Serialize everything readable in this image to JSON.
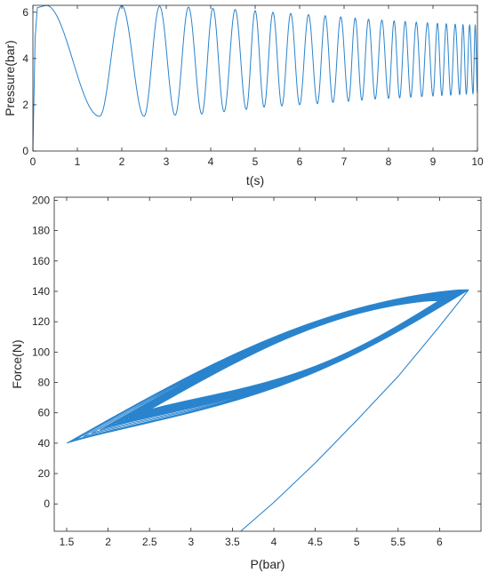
{
  "chart_data": [
    {
      "type": "line",
      "xlabel": "t(s)",
      "ylabel": "Pressure(bar)",
      "xlim": [
        0,
        10
      ],
      "ylim": [
        0,
        6.3
      ],
      "xticks": [
        "0",
        "1",
        "2",
        "3",
        "4",
        "5",
        "6",
        "7",
        "8",
        "9",
        "10"
      ],
      "yticks": [
        "0",
        "2",
        "4",
        "6"
      ],
      "grid": false,
      "series": [
        {
          "color": "#2a84cd",
          "description": "oscillating pressure signal",
          "initial_rise": {
            "t": [
              0,
              0.05,
              0.1,
              0.3
            ],
            "p": [
              0,
              4.9,
              6.2,
              6.3
            ]
          },
          "peaks": [
            6.3,
            6.28,
            6.26,
            6.22,
            6.17,
            6.12,
            6.07,
            6.0,
            5.95,
            5.9,
            5.85,
            5.8,
            5.75,
            5.7,
            5.66,
            5.63,
            5.6,
            5.57,
            5.54,
            5.52,
            5.5,
            5.48,
            5.46,
            5.45,
            5.44
          ],
          "troughs": [
            1.5,
            1.5,
            1.55,
            1.6,
            1.7,
            1.8,
            1.9,
            1.95,
            2.0,
            2.05,
            2.1,
            2.15,
            2.2,
            2.25,
            2.28,
            2.3,
            2.33,
            2.35,
            2.38,
            2.4,
            2.42,
            2.44,
            2.46,
            2.48,
            2.5
          ],
          "trough_times": [
            1.5,
            2.5,
            3.2,
            3.8,
            4.3,
            4.8,
            5.2,
            5.6,
            6.0,
            6.4,
            6.75,
            7.1,
            7.4,
            7.7,
            8.0,
            8.25,
            8.5,
            8.75,
            9.0,
            9.2,
            9.4,
            9.6,
            9.75,
            9.9,
            10.0
          ]
        }
      ]
    },
    {
      "type": "line",
      "xlabel": "P(bar)",
      "ylabel": "Force(N)",
      "xlim": [
        1.35,
        6.5
      ],
      "ylim": [
        -18,
        202
      ],
      "xticks": [
        "1.5",
        "2",
        "2.5",
        "3",
        "3.5",
        "4",
        "4.5",
        "5",
        "5.5",
        "6"
      ],
      "yticks": [
        "0",
        "20",
        "40",
        "60",
        "80",
        "100",
        "120",
        "140",
        "160",
        "180",
        "200"
      ],
      "grid": false,
      "series": [
        {
          "color": "#2a84cd",
          "description": "force vs pressure hysteresis loops",
          "upper_right_corner": [
            6.35,
            141
          ],
          "lower_left_corner": [
            1.5,
            40
          ],
          "initial_curve": {
            "p": [
              3.6,
              4.0,
              4.5,
              5.0,
              5.5,
              6.0,
              6.35
            ],
            "f": [
              -18,
              1,
              27,
              55,
              84,
              117,
              141
            ]
          }
        }
      ]
    }
  ]
}
